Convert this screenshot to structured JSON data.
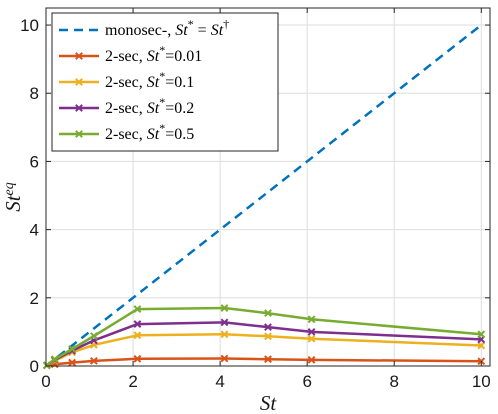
{
  "chart_data": {
    "type": "line",
    "xlabel": "St",
    "ylabel": "St",
    "ylabel_sup": "eq",
    "xlim": [
      0,
      10.2
    ],
    "ylim": [
      0,
      10.5
    ],
    "xticks": [
      0,
      2,
      4,
      6,
      8,
      10
    ],
    "yticks": [
      0,
      2,
      4,
      6,
      8,
      10
    ],
    "grid": true,
    "legend_position": "top-left",
    "series": [
      {
        "name": "monosec-, St* = St†",
        "legend_parts": [
          {
            "text": "monosec-, ",
            "italic": false,
            "sup": false
          },
          {
            "text": "St",
            "italic": true,
            "sup": false
          },
          {
            "text": "*",
            "italic": false,
            "sup": true
          },
          {
            "text": " = ",
            "italic": false,
            "sup": false
          },
          {
            "text": "St",
            "italic": true,
            "sup": false
          },
          {
            "text": "†",
            "italic": false,
            "sup": true
          }
        ],
        "color": "#0072BD",
        "dashed": true,
        "markers": false,
        "x": [
          0,
          10
        ],
        "y": [
          0,
          10
        ]
      },
      {
        "name": "2-sec, St*=0.01",
        "legend_parts": [
          {
            "text": "2-sec, ",
            "italic": false,
            "sup": false
          },
          {
            "text": "St",
            "italic": true,
            "sup": false
          },
          {
            "text": "*",
            "italic": false,
            "sup": true
          },
          {
            "text": "=0.01",
            "italic": false,
            "sup": false
          }
        ],
        "color": "#D95319",
        "dashed": false,
        "markers": true,
        "x": [
          0.02,
          0.2,
          0.6,
          1.1,
          2.1,
          4.1,
          5.1,
          6.1,
          10
        ],
        "y": [
          0.02,
          0.05,
          0.1,
          0.15,
          0.21,
          0.22,
          0.2,
          0.18,
          0.14
        ]
      },
      {
        "name": "2-sec, St*=0.1",
        "legend_parts": [
          {
            "text": "2-sec, ",
            "italic": false,
            "sup": false
          },
          {
            "text": "St",
            "italic": true,
            "sup": false
          },
          {
            "text": "*",
            "italic": false,
            "sup": true
          },
          {
            "text": "=0.1",
            "italic": false,
            "sup": false
          }
        ],
        "color": "#EDB120",
        "dashed": false,
        "markers": true,
        "x": [
          0.02,
          0.2,
          0.6,
          1.1,
          2.1,
          4.1,
          5.1,
          6.1,
          10
        ],
        "y": [
          0.02,
          0.15,
          0.4,
          0.62,
          0.9,
          0.93,
          0.87,
          0.8,
          0.6
        ]
      },
      {
        "name": "2-sec, St*=0.2",
        "legend_parts": [
          {
            "text": "2-sec, ",
            "italic": false,
            "sup": false
          },
          {
            "text": "St",
            "italic": true,
            "sup": false
          },
          {
            "text": "*",
            "italic": false,
            "sup": true
          },
          {
            "text": "=0.2",
            "italic": false,
            "sup": false
          }
        ],
        "color": "#7E2F8E",
        "dashed": false,
        "markers": true,
        "x": [
          0.02,
          0.2,
          0.6,
          1.1,
          2.1,
          4.1,
          5.1,
          6.1,
          10
        ],
        "y": [
          0.02,
          0.18,
          0.45,
          0.75,
          1.23,
          1.28,
          1.14,
          1.0,
          0.78
        ]
      },
      {
        "name": "2-sec, St*=0.5",
        "legend_parts": [
          {
            "text": "2-sec, ",
            "italic": false,
            "sup": false
          },
          {
            "text": "St",
            "italic": true,
            "sup": false
          },
          {
            "text": "*",
            "italic": false,
            "sup": true
          },
          {
            "text": "=0.5",
            "italic": false,
            "sup": false
          }
        ],
        "color": "#77AC30",
        "dashed": false,
        "markers": true,
        "x": [
          0.02,
          0.2,
          0.6,
          1.1,
          2.1,
          4.1,
          5.1,
          6.1,
          10
        ],
        "y": [
          0.02,
          0.2,
          0.5,
          0.88,
          1.67,
          1.7,
          1.55,
          1.37,
          0.93
        ]
      }
    ]
  }
}
